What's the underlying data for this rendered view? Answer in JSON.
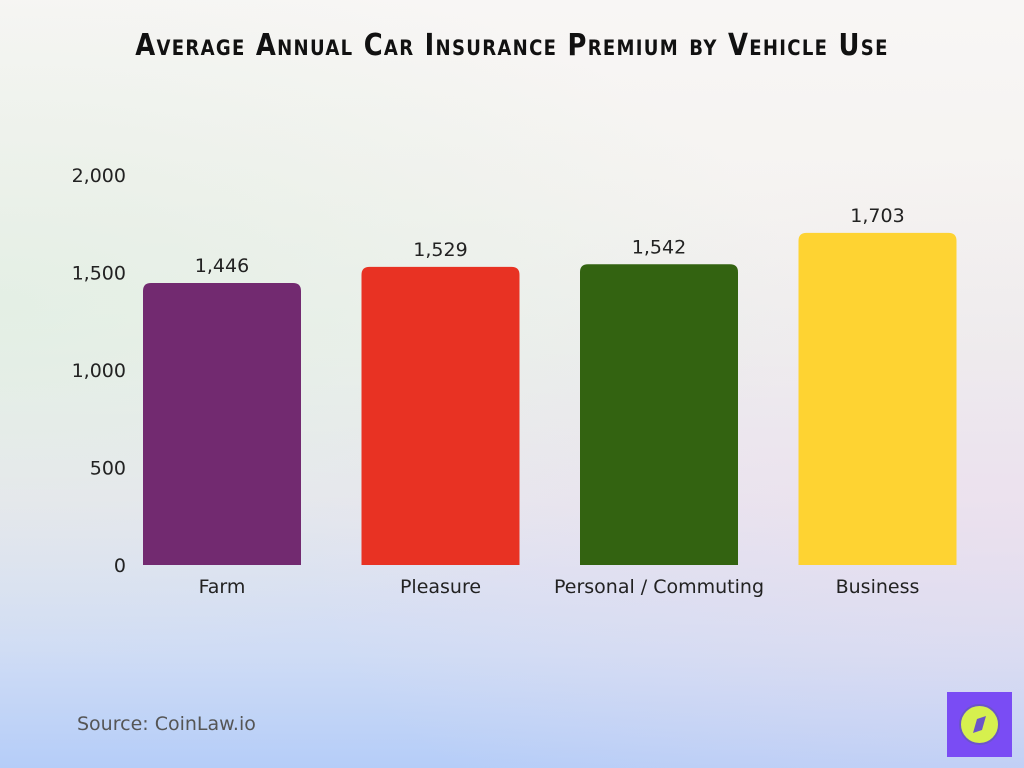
{
  "chart_data": {
    "type": "bar",
    "title": "Average Annual Car Insurance Premium by Vehicle Use",
    "categories": [
      "Farm",
      "Pleasure",
      "Personal / Commuting",
      "Business"
    ],
    "values": [
      1446,
      1529,
      1542,
      1703
    ],
    "value_labels": [
      "1,446",
      "1,529",
      "1,542",
      "1,703"
    ],
    "colors": [
      "#722a70",
      "#e83223",
      "#336311",
      "#fed332"
    ],
    "ylim": [
      0,
      2000
    ],
    "yticks": [
      0,
      500,
      1000,
      1500,
      2000
    ],
    "ytick_labels": [
      "0",
      "500",
      "1,000",
      "1,500",
      "2,000"
    ],
    "xlabel": "",
    "ylabel": "",
    "grid": false,
    "legend": "none"
  },
  "source": "Source: CoinLaw.io",
  "logo": {
    "icon": "compass-icon",
    "background": "#7a4cf4",
    "circle": "#d6f04e"
  }
}
